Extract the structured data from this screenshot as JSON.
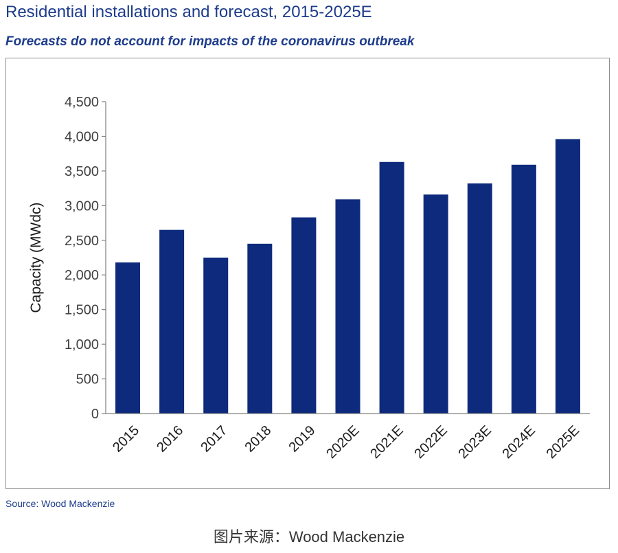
{
  "title": "Residential installations and forecast, 2015-2025E",
  "subtitle": "Forecasts do not account for impacts of the coronavirus outbreak",
  "source": "Source: Wood Mackenzie",
  "caption": "图片来源：Wood Mackenzie",
  "colors": {
    "bar": "#0d2a7c",
    "title": "#1d3c8c",
    "axis": "#7f7f7f",
    "tick_text": "#404040"
  },
  "chart_data": {
    "type": "bar",
    "title": "",
    "xlabel": "",
    "ylabel": "Capacity (MWdc)",
    "ylim": [
      0,
      4500
    ],
    "yticks": [
      0,
      500,
      1000,
      1500,
      2000,
      2500,
      3000,
      3500,
      4000,
      4500
    ],
    "ytick_labels": [
      "0",
      "500",
      "1,000",
      "1,500",
      "2,000",
      "2,500",
      "3,000",
      "3,500",
      "4,000",
      "4,500"
    ],
    "categories": [
      "2015",
      "2016",
      "2017",
      "2018",
      "2019",
      "2020E",
      "2021E",
      "2022E",
      "2023E",
      "2024E",
      "2025E"
    ],
    "values": [
      2180,
      2650,
      2250,
      2450,
      2830,
      3090,
      3630,
      3160,
      3320,
      3590,
      3960
    ],
    "grid": false,
    "legend": "none"
  }
}
